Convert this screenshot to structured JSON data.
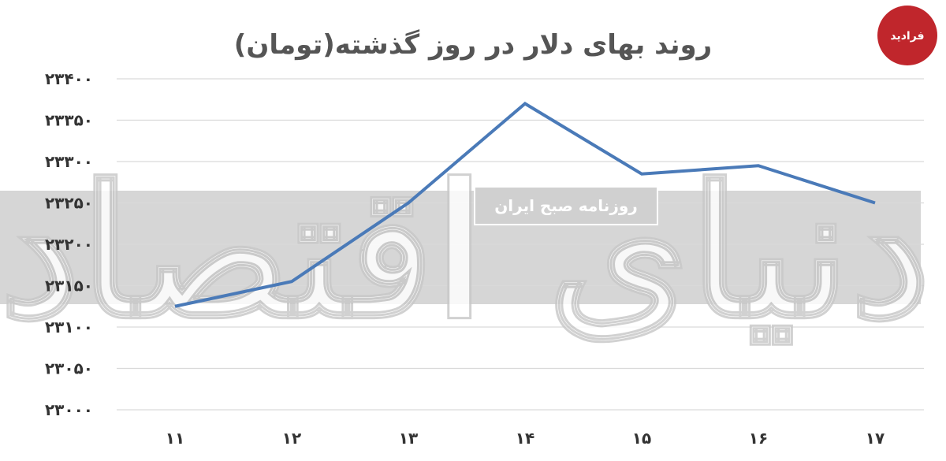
{
  "chart_data": {
    "type": "line",
    "title": "روند بهای دلار در روز گذشته(تومان)",
    "categories": [
      "۱۱",
      "۱۲",
      "۱۳",
      "۱۴",
      "۱۵",
      "۱۶",
      "۱۷"
    ],
    "series": [
      {
        "values": [
          23125,
          23155,
          23250,
          23370,
          23285,
          23295,
          23250
        ]
      }
    ],
    "y_ticks": [
      23000,
      23050,
      23100,
      23150,
      23200,
      23250,
      23300,
      23350,
      23400
    ],
    "y_tick_labels": [
      "۲۳۰۰۰",
      "۲۳۰۵۰",
      "۲۳۱۰۰",
      "۲۳۱۵۰",
      "۲۳۲۰۰",
      "۲۳۲۵۰",
      "۲۳۳۰۰",
      "۲۳۳۵۰",
      "۲۳۴۰۰"
    ],
    "ylim": [
      23000,
      23400
    ],
    "grid": true,
    "line_color": "#4a7ab8",
    "grid_color": "#d9d9d9"
  },
  "watermark": {
    "main_text": "دنیای اقتصاد",
    "band_text": "روزنامه صبح ایران",
    "band_color": "#d6d6d6"
  },
  "logo": {
    "text": "فرادید",
    "color": "#c0262c"
  }
}
